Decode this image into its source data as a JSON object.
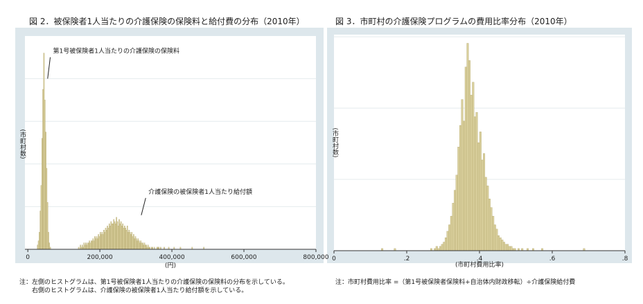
{
  "figures": [
    {
      "title": "図 2．被保険者1人当たりの介護保険の保険料と給付費の分布（2010年）",
      "note_lines": [
        "注：左側のヒストグラムは、第1号被保険者1人当たりの介護保険の保険料の分布を示している。",
        "　　右側のヒストグラムは、介護保険の被保険者1人当たり給付額を示している。"
      ]
    },
    {
      "title": "図 3．市町村の介護保険プログラムの費用比率分布（2010年）",
      "note_lines": [
        "注：市町村費用比率 =（第1号被保険者保険料+自治体内財政移転）÷介護保険給付費"
      ]
    }
  ],
  "chart_data": [
    {
      "type": "bar",
      "histogram": true,
      "xlabel": "(円)",
      "ylabel": "(市町村数)",
      "xlim": [
        -8000,
        800000
      ],
      "ylim": [
        0,
        100
      ],
      "x_ticks": [
        {
          "value": 0,
          "label": "0"
        },
        {
          "value": 200000,
          "label": "200,000"
        },
        {
          "value": 400000,
          "label": "400,000"
        },
        {
          "value": 600000,
          "label": "600,000"
        },
        {
          "value": 800000,
          "label": "800,000"
        }
      ],
      "gridlines_y": [
        20,
        40,
        60,
        80
      ],
      "bar_color": "#d9cf9c",
      "bar_stroke": "#a89b5e",
      "annotations": [
        {
          "text": "第1号被保険者1人当たりの介護保険の保険料",
          "point": [
            55000,
            80
          ],
          "label_at": [
            70000,
            92
          ]
        },
        {
          "text": "介護保険の被保険者1人当たり給付額",
          "point": [
            315000,
            16
          ],
          "label_at": [
            335000,
            26
          ]
        }
      ],
      "series": [
        {
          "x_start": 26000,
          "bin_width": 2500,
          "values": [
            2,
            4,
            8,
            18,
            30,
            52,
            75,
            92,
            70,
            55,
            38,
            22,
            8,
            3,
            1
          ]
        },
        {
          "x_start": 140000,
          "bin_width": 2500,
          "values": [
            1,
            0,
            2,
            1,
            2,
            1,
            3,
            2,
            3,
            2,
            3,
            3,
            4,
            3,
            4,
            4,
            5,
            4,
            6,
            5,
            6,
            5,
            7,
            6,
            8,
            7,
            8,
            7,
            9,
            8,
            10,
            9,
            11,
            10,
            12,
            11,
            13,
            12,
            12,
            14,
            13,
            12,
            15,
            13,
            11,
            14,
            12,
            13,
            11,
            12,
            10,
            11,
            10,
            9,
            11,
            8,
            9,
            8,
            7,
            8,
            6,
            7,
            5,
            6,
            5,
            4,
            5,
            4,
            3,
            4,
            3,
            3,
            2,
            3,
            2,
            2,
            1,
            2,
            1,
            1,
            0,
            1,
            1,
            0,
            1,
            0,
            0,
            1,
            0,
            1
          ]
        },
        {
          "x_start": 360000,
          "bin_width": 2500,
          "values": [
            1,
            0,
            0,
            1,
            0,
            0,
            0,
            1,
            0,
            0,
            0,
            0,
            1,
            0,
            0,
            0,
            0,
            0,
            1,
            0,
            0,
            0,
            0,
            0,
            0,
            1,
            0,
            0,
            0,
            0,
            0,
            0,
            0,
            0,
            0,
            0,
            0,
            0,
            1,
            0,
            0,
            0,
            0,
            0,
            0,
            0,
            0,
            0,
            0,
            0,
            0,
            1
          ]
        }
      ]
    },
    {
      "type": "bar",
      "histogram": true,
      "xlabel": "(市町村費用比率)",
      "ylabel": "(市町村数)",
      "xlim": [
        0,
        0.8
      ],
      "ylim": [
        0,
        100
      ],
      "x_ticks": [
        {
          "value": 0,
          "label": "0"
        },
        {
          "value": 0.2,
          "label": ".2"
        },
        {
          "value": 0.4,
          "label": ".4"
        },
        {
          "value": 0.6,
          "label": ".6"
        },
        {
          "value": 0.8,
          "label": ".8"
        }
      ],
      "gridlines_y": [
        33,
        66,
        99
      ],
      "bar_color": "#d9cf9c",
      "bar_stroke": "#a89b5e",
      "series": [
        {
          "x_start": 0.13,
          "bin_width": 0.005,
          "values": [
            1,
            0,
            0,
            0,
            0,
            0,
            0,
            1,
            0,
            0,
            0,
            0,
            0,
            0,
            0,
            0,
            0,
            0,
            0,
            0,
            0,
            0,
            0,
            0,
            0,
            0,
            0,
            1,
            0,
            1,
            2,
            1,
            2,
            3,
            4,
            6,
            9,
            12,
            16,
            22,
            28,
            35,
            48,
            58,
            70,
            60,
            85,
            96,
            88,
            72,
            78,
            62,
            64,
            50,
            55,
            42,
            45,
            34,
            30,
            24,
            20,
            16,
            12,
            10,
            7,
            6,
            5,
            4,
            3,
            3,
            2,
            2,
            1,
            1,
            0,
            1,
            0,
            1,
            0,
            0,
            1,
            0,
            0,
            1,
            0,
            0,
            0,
            0,
            1,
            0,
            0,
            0,
            0,
            0,
            0,
            0,
            0,
            0,
            0,
            0,
            0,
            0,
            0,
            0,
            0,
            0,
            0,
            0,
            0,
            0,
            0,
            1
          ]
        }
      ]
    }
  ]
}
